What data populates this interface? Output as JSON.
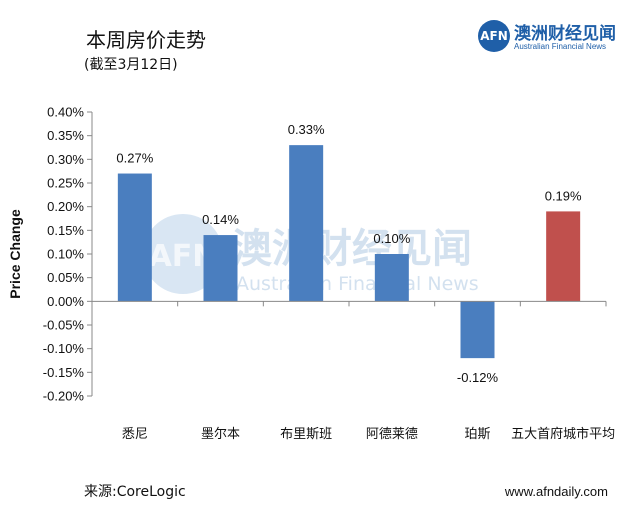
{
  "header": {
    "title": "本周房价走势",
    "subtitle": "(截至3月12日)"
  },
  "logo": {
    "mark": "AFN",
    "cn": "澳洲财经见闻",
    "en": "Australian Financial News"
  },
  "watermark": {
    "mark": "AFN",
    "cn": "澳洲财经见闻",
    "en": "Australian Financial News"
  },
  "footer": {
    "source": "来源:CoreLogic",
    "site": "www.afndaily.com"
  },
  "colors": {
    "bar_blue": "#4a7ebf",
    "bar_red": "#c0504d",
    "brand": "#1f5fa8"
  },
  "chart_data": {
    "type": "bar",
    "ylabel": "Price Change",
    "ylim": [
      -0.2,
      0.4
    ],
    "yticks": [
      0.4,
      0.35,
      0.3,
      0.25,
      0.2,
      0.15,
      0.1,
      0.05,
      0.0,
      -0.05,
      -0.1,
      -0.15,
      -0.2
    ],
    "ytick_labels": [
      "0.40%",
      "0.35%",
      "0.30%",
      "0.25%",
      "0.20%",
      "0.15%",
      "0.10%",
      "0.05%",
      "0.00%",
      "-0.05%",
      "-0.10%",
      "-0.15%",
      "-0.20%"
    ],
    "categories": [
      "悉尼",
      "墨尔本",
      "布里斯班",
      "阿德莱德",
      "珀斯",
      "五大首府城市平均"
    ],
    "values": [
      0.27,
      0.14,
      0.33,
      0.1,
      -0.12,
      0.19
    ],
    "data_labels": [
      "0.27%",
      "0.14%",
      "0.33%",
      "0.10%",
      "-0.12%",
      "0.19%"
    ],
    "bar_colors": [
      "#4a7ebf",
      "#4a7ebf",
      "#4a7ebf",
      "#4a7ebf",
      "#4a7ebf",
      "#c0504d"
    ],
    "grid": false,
    "legend": "none"
  }
}
